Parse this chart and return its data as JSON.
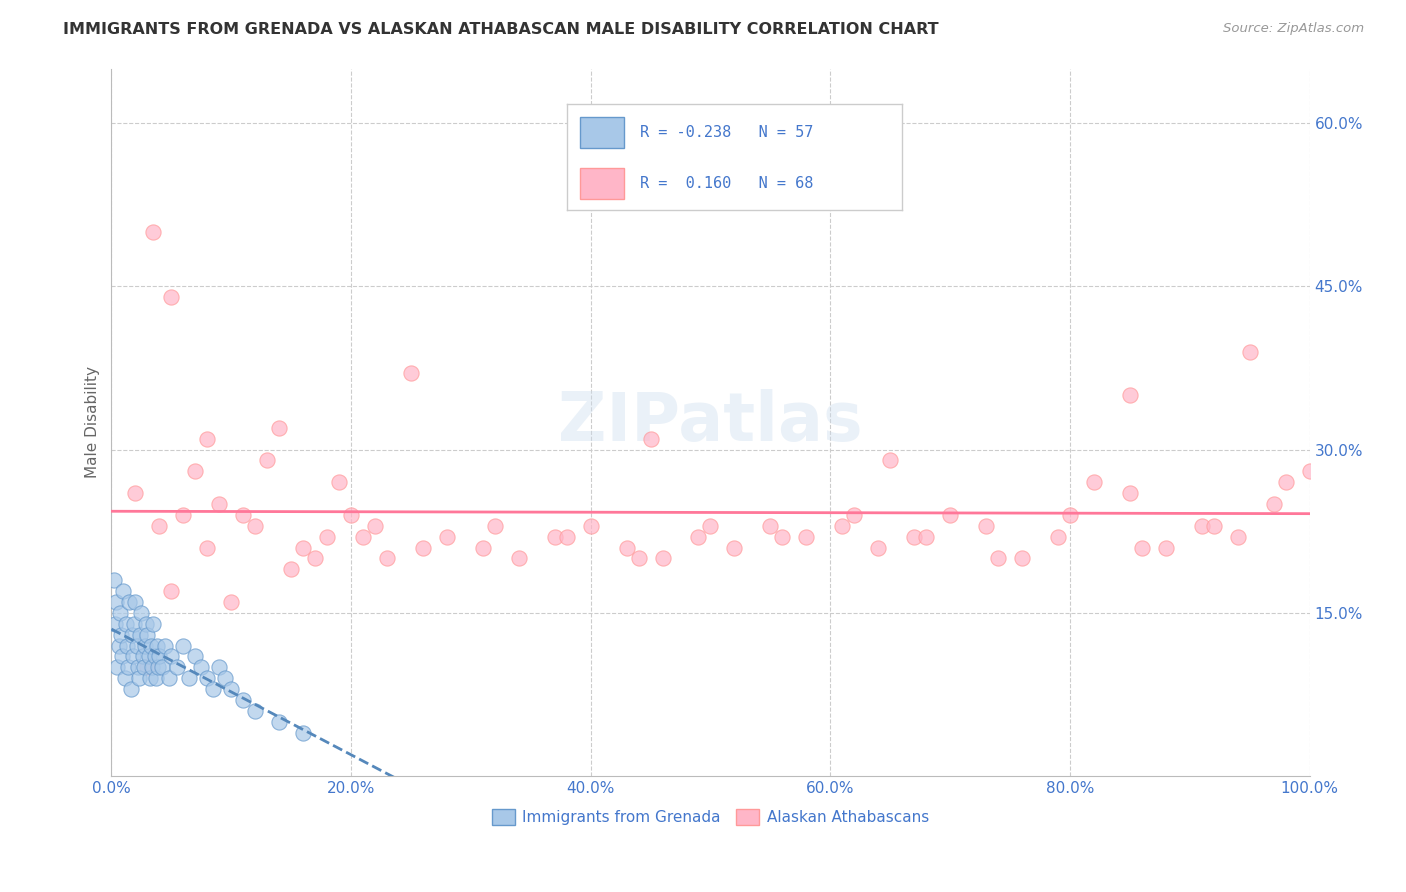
{
  "title": "IMMIGRANTS FROM GRENADA VS ALASKAN ATHABASCAN MALE DISABILITY CORRELATION CHART",
  "source": "Source: ZipAtlas.com",
  "ylabel": "Male Disability",
  "xlim": [
    0.0,
    100.0
  ],
  "ylim": [
    0.0,
    65.0
  ],
  "yticks": [
    15.0,
    30.0,
    45.0,
    60.0
  ],
  "xticks": [
    0.0,
    20.0,
    40.0,
    60.0,
    80.0,
    100.0
  ],
  "color_blue": "#A8C8E8",
  "color_pink": "#FFB6C8",
  "color_edge_blue": "#6699CC",
  "color_edge_pink": "#FF9999",
  "color_line_blue": "#5588BB",
  "color_line_pink": "#FF7799",
  "color_axis_tick": "#4477CC",
  "color_grid": "#CCCCCC",
  "color_title": "#333333",
  "color_source": "#999999",
  "legend_r1_val": "-0.238",
  "legend_n1_val": "57",
  "legend_r2_val": "0.160",
  "legend_n2_val": "68",
  "blue_x": [
    0.2,
    0.3,
    0.4,
    0.5,
    0.6,
    0.7,
    0.8,
    0.9,
    1.0,
    1.1,
    1.2,
    1.3,
    1.4,
    1.5,
    1.6,
    1.7,
    1.8,
    1.9,
    2.0,
    2.1,
    2.2,
    2.3,
    2.4,
    2.5,
    2.6,
    2.7,
    2.8,
    2.9,
    3.0,
    3.1,
    3.2,
    3.3,
    3.4,
    3.5,
    3.6,
    3.7,
    3.8,
    3.9,
    4.0,
    4.2,
    4.5,
    4.8,
    5.0,
    5.5,
    6.0,
    6.5,
    7.0,
    7.5,
    8.0,
    8.5,
    9.0,
    9.5,
    10.0,
    11.0,
    12.0,
    14.0,
    16.0
  ],
  "blue_y": [
    18.0,
    14.0,
    16.0,
    10.0,
    12.0,
    15.0,
    13.0,
    11.0,
    17.0,
    9.0,
    14.0,
    12.0,
    10.0,
    16.0,
    8.0,
    13.0,
    11.0,
    14.0,
    16.0,
    12.0,
    10.0,
    9.0,
    13.0,
    15.0,
    11.0,
    10.0,
    12.0,
    14.0,
    13.0,
    11.0,
    9.0,
    12.0,
    10.0,
    14.0,
    11.0,
    9.0,
    12.0,
    10.0,
    11.0,
    10.0,
    12.0,
    9.0,
    11.0,
    10.0,
    12.0,
    9.0,
    11.0,
    10.0,
    9.0,
    8.0,
    10.0,
    9.0,
    8.0,
    7.0,
    6.0,
    5.0,
    4.0
  ],
  "pink_x": [
    2.0,
    3.5,
    5.0,
    7.0,
    9.0,
    11.0,
    14.0,
    16.0,
    19.0,
    22.0,
    25.0,
    28.0,
    31.0,
    34.0,
    37.0,
    40.0,
    43.0,
    46.0,
    49.0,
    52.0,
    55.0,
    58.0,
    61.0,
    64.0,
    67.0,
    70.0,
    73.0,
    76.0,
    79.0,
    82.0,
    85.0,
    88.0,
    91.0,
    94.0,
    97.0,
    100.0,
    5.0,
    8.0,
    12.0,
    17.0,
    21.0,
    6.0,
    4.0,
    10.0,
    15.0,
    20.0,
    26.0,
    32.0,
    38.0,
    44.0,
    50.0,
    56.0,
    62.0,
    68.0,
    74.0,
    80.0,
    86.0,
    92.0,
    98.0,
    8.0,
    13.0,
    18.0,
    23.0,
    45.0,
    65.0,
    85.0,
    95.0,
    3.0
  ],
  "pink_y": [
    26.0,
    50.0,
    44.0,
    28.0,
    25.0,
    24.0,
    32.0,
    21.0,
    27.0,
    23.0,
    37.0,
    22.0,
    21.0,
    20.0,
    22.0,
    23.0,
    21.0,
    20.0,
    22.0,
    21.0,
    23.0,
    22.0,
    23.0,
    21.0,
    22.0,
    24.0,
    23.0,
    20.0,
    22.0,
    27.0,
    26.0,
    21.0,
    23.0,
    22.0,
    25.0,
    28.0,
    17.0,
    21.0,
    23.0,
    20.0,
    22.0,
    24.0,
    23.0,
    16.0,
    19.0,
    24.0,
    21.0,
    23.0,
    22.0,
    20.0,
    23.0,
    22.0,
    24.0,
    22.0,
    20.0,
    24.0,
    21.0,
    23.0,
    27.0,
    31.0,
    29.0,
    22.0,
    20.0,
    31.0,
    29.0,
    35.0,
    39.0,
    10.0
  ]
}
